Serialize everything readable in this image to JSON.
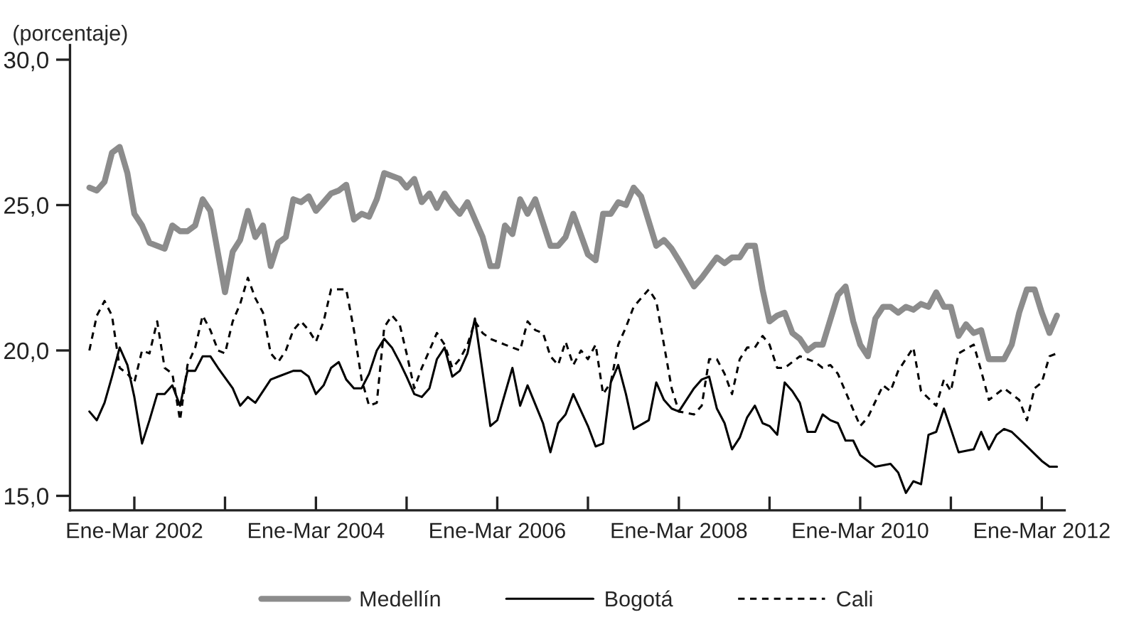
{
  "chart_data": {
    "type": "line",
    "ylabel": "(porcentaje)",
    "ylim": [
      14.5,
      30.5
    ],
    "yticks": [
      {
        "value": 15,
        "label": "15,0"
      },
      {
        "value": 20,
        "label": "20,0"
      },
      {
        "value": 25,
        "label": "25,0"
      },
      {
        "value": 30,
        "label": "30,0"
      }
    ],
    "xlim": [
      "2001-06-15",
      "2012-06"
    ],
    "xticks": [
      {
        "value": "2002-03",
        "label": "Ene-Mar 2002"
      },
      {
        "value": "2003-03",
        "label": null
      },
      {
        "value": "2004-03",
        "label": "Ene-Mar 2004"
      },
      {
        "value": "2005-03",
        "label": null
      },
      {
        "value": "2006-03",
        "label": "Ene-Mar 2006"
      },
      {
        "value": "2007-03",
        "label": null
      },
      {
        "value": "2008-03",
        "label": "Ene-Mar 2008"
      },
      {
        "value": "2009-03",
        "label": null
      },
      {
        "value": "2010-03",
        "label": "Ene-Mar 2010"
      },
      {
        "value": "2011-03",
        "label": null
      },
      {
        "value": "2012-03",
        "label": "Ene-Mar 2012"
      }
    ],
    "grid": false,
    "legend": "bottom",
    "series": [
      {
        "name": "Medellín",
        "color": "#8c8c8c",
        "line_style": "solid",
        "x": [
          "2001-09",
          "2001-10",
          "2001-11",
          "2001-12",
          "2002-01",
          "2002-02",
          "2002-03",
          "2002-04",
          "2002-05",
          "2002-07",
          "2002-08",
          "2002-09",
          "2002-10",
          "2002-11",
          "2002-12",
          "2003-01",
          "2003-03",
          "2003-04",
          "2003-05",
          "2003-06",
          "2003-07",
          "2003-08",
          "2003-09",
          "2003-10",
          "2003-11",
          "2003-12",
          "2004-01",
          "2004-02",
          "2004-03",
          "2004-04",
          "2004-05",
          "2004-06",
          "2004-07",
          "2004-08",
          "2004-09",
          "2004-10",
          "2004-11",
          "2004-12",
          "2005-02",
          "2005-03",
          "2005-04",
          "2005-05",
          "2005-06",
          "2005-07",
          "2005-08",
          "2005-09",
          "2005-10",
          "2005-11",
          "2006-01",
          "2006-02",
          "2006-03",
          "2006-04",
          "2006-05",
          "2006-06",
          "2006-07",
          "2006-08",
          "2006-10",
          "2006-11",
          "2006-12",
          "2007-01",
          "2007-03",
          "2007-04",
          "2007-05",
          "2007-06",
          "2007-07",
          "2007-08",
          "2007-09",
          "2007-10",
          "2007-12",
          "2008-01",
          "2008-02",
          "2008-03",
          "2008-05",
          "2008-06",
          "2008-08",
          "2008-09",
          "2008-10",
          "2008-11",
          "2008-12",
          "2009-01",
          "2009-02",
          "2009-03",
          "2009-04",
          "2009-05",
          "2009-06",
          "2009-07",
          "2009-08",
          "2009-09",
          "2009-10",
          "2009-12",
          "2010-01",
          "2010-02",
          "2010-03",
          "2010-04",
          "2010-05",
          "2010-06",
          "2010-07",
          "2010-08",
          "2010-09",
          "2010-10",
          "2010-11",
          "2010-12",
          "2011-01",
          "2011-02",
          "2011-03",
          "2011-04",
          "2011-05",
          "2011-06",
          "2011-07",
          "2011-08",
          "2011-10",
          "2011-11",
          "2011-12",
          "2012-01",
          "2012-02",
          "2012-03",
          "2012-04",
          "2012-05"
        ],
        "values": [
          25.6,
          25.5,
          25.8,
          26.8,
          27.0,
          26.1,
          24.7,
          24.3,
          23.7,
          23.5,
          24.3,
          24.1,
          24.1,
          24.3,
          25.2,
          24.8,
          22.0,
          23.4,
          23.8,
          24.8,
          23.9,
          24.3,
          22.9,
          23.7,
          23.9,
          25.2,
          25.1,
          25.3,
          24.8,
          25.1,
          25.4,
          25.5,
          25.7,
          24.5,
          24.7,
          24.6,
          25.2,
          26.1,
          25.9,
          25.6,
          25.9,
          25.1,
          25.4,
          24.9,
          25.4,
          25.0,
          24.7,
          25.1,
          23.9,
          22.9,
          22.9,
          24.3,
          24.0,
          25.2,
          24.7,
          25.2,
          23.6,
          23.6,
          23.9,
          24.7,
          23.3,
          23.1,
          24.7,
          24.7,
          25.1,
          25.0,
          25.6,
          25.3,
          23.6,
          23.8,
          23.5,
          23.1,
          22.2,
          22.5,
          23.2,
          23.0,
          23.2,
          23.2,
          23.6,
          23.6,
          22.1,
          21.0,
          21.2,
          21.3,
          20.6,
          20.4,
          20.0,
          20.2,
          20.2,
          21.9,
          22.2,
          21.0,
          20.2,
          19.8,
          21.1,
          21.5,
          21.5,
          21.3,
          21.5,
          21.4,
          21.6,
          21.5,
          22.0,
          21.5,
          21.5,
          20.5,
          20.9,
          20.6,
          20.7,
          19.7,
          19.7,
          20.2,
          21.3,
          22.1,
          22.1,
          21.3,
          20.6,
          21.2
        ]
      },
      {
        "name": "Bogotá",
        "color": "#000000",
        "line_style": "solid",
        "x": [
          "2001-09",
          "2001-10",
          "2001-11",
          "2001-12",
          "2002-01",
          "2002-02",
          "2002-03",
          "2002-04",
          "2002-05",
          "2002-06",
          "2002-07",
          "2002-08",
          "2002-09",
          "2002-10",
          "2002-11",
          "2002-12",
          "2003-01",
          "2003-02",
          "2003-04",
          "2003-05",
          "2003-06",
          "2003-07",
          "2003-09",
          "2003-10",
          "2003-12",
          "2004-01",
          "2004-02",
          "2004-03",
          "2004-04",
          "2004-05",
          "2004-06",
          "2004-07",
          "2004-08",
          "2004-09",
          "2004-10",
          "2004-11",
          "2004-12",
          "2005-01",
          "2005-02",
          "2005-03",
          "2005-04",
          "2005-05",
          "2005-06",
          "2005-07",
          "2005-08",
          "2005-09",
          "2005-10",
          "2005-11",
          "2005-12",
          "2006-02",
          "2006-03",
          "2006-05",
          "2006-06",
          "2006-07",
          "2006-09",
          "2006-10",
          "2006-11",
          "2006-12",
          "2007-01",
          "2007-03",
          "2007-04",
          "2007-05",
          "2007-06",
          "2007-07",
          "2007-08",
          "2007-09",
          "2007-11",
          "2007-12",
          "2008-01",
          "2008-02",
          "2008-03",
          "2008-05",
          "2008-06",
          "2008-07",
          "2008-08",
          "2008-09",
          "2008-10",
          "2008-11",
          "2008-12",
          "2009-01",
          "2009-02",
          "2009-03",
          "2009-04",
          "2009-05",
          "2009-06",
          "2009-07",
          "2009-08",
          "2009-09",
          "2009-10",
          "2009-11",
          "2009-12",
          "2010-01",
          "2010-02",
          "2010-03",
          "2010-04",
          "2010-05",
          "2010-07",
          "2010-08",
          "2010-09",
          "2010-10",
          "2010-11",
          "2010-12",
          "2011-01",
          "2011-02",
          "2011-03",
          "2011-04",
          "2011-06",
          "2011-07",
          "2011-08",
          "2011-09",
          "2011-10",
          "2011-11",
          "2012-01",
          "2012-03",
          "2012-04",
          "2012-05"
        ],
        "values": [
          17.9,
          17.6,
          18.2,
          19.1,
          20.1,
          19.5,
          18.4,
          16.8,
          17.6,
          18.5,
          18.5,
          18.8,
          18.1,
          19.3,
          19.3,
          19.8,
          19.8,
          19.4,
          18.7,
          18.1,
          18.4,
          18.2,
          19.0,
          19.1,
          19.3,
          19.3,
          19.1,
          18.5,
          18.8,
          19.4,
          19.6,
          19.0,
          18.7,
          18.7,
          19.2,
          20.0,
          20.4,
          20.1,
          19.6,
          19.1,
          18.5,
          18.4,
          18.7,
          19.7,
          20.1,
          19.1,
          19.3,
          19.9,
          21.1,
          17.4,
          17.6,
          19.4,
          18.1,
          18.8,
          17.5,
          16.5,
          17.5,
          17.8,
          18.5,
          17.4,
          16.7,
          16.8,
          18.9,
          19.5,
          18.5,
          17.3,
          17.6,
          18.9,
          18.3,
          18.0,
          17.9,
          18.7,
          19.0,
          19.1,
          18.0,
          17.5,
          16.6,
          17.0,
          17.7,
          18.1,
          17.5,
          17.4,
          17.1,
          18.9,
          18.6,
          18.2,
          17.2,
          17.2,
          17.8,
          17.6,
          17.5,
          16.9,
          16.9,
          16.4,
          16.2,
          16.0,
          16.1,
          15.8,
          15.1,
          15.5,
          15.4,
          17.1,
          17.2,
          18.0,
          17.3,
          16.5,
          16.6,
          17.2,
          16.6,
          17.1,
          17.3,
          17.2,
          16.7,
          16.2,
          16.0,
          16.0
        ]
      },
      {
        "name": "Cali",
        "color": "#000000",
        "line_style": "dashed",
        "x": [
          "2001-09",
          "2001-10",
          "2001-11",
          "2001-12",
          "2002-01",
          "2002-02",
          "2002-03",
          "2002-04",
          "2002-05",
          "2002-06",
          "2002-07",
          "2002-08",
          "2002-09",
          "2002-10",
          "2002-11",
          "2002-12",
          "2003-01",
          "2003-02",
          "2003-03",
          "2003-04",
          "2003-05",
          "2003-06",
          "2003-07",
          "2003-08",
          "2003-09",
          "2003-10",
          "2003-11",
          "2003-12",
          "2004-01",
          "2004-02",
          "2004-03",
          "2004-04",
          "2004-05",
          "2004-06",
          "2004-07",
          "2004-08",
          "2004-09",
          "2004-10",
          "2004-11",
          "2004-12",
          "2005-01",
          "2005-02",
          "2005-03",
          "2005-04",
          "2005-05",
          "2005-06",
          "2005-07",
          "2005-08",
          "2005-09",
          "2005-10",
          "2005-11",
          "2005-12",
          "2006-01",
          "2006-02",
          "2006-04",
          "2006-06",
          "2006-07",
          "2006-08",
          "2006-09",
          "2006-10",
          "2006-11",
          "2006-12",
          "2007-01",
          "2007-02",
          "2007-03",
          "2007-04",
          "2007-05",
          "2007-06",
          "2007-07",
          "2007-08",
          "2007-09",
          "2007-11",
          "2007-12",
          "2008-01",
          "2008-02",
          "2008-03",
          "2008-05",
          "2008-06",
          "2008-07",
          "2008-08",
          "2008-09",
          "2008-10",
          "2008-11",
          "2008-12",
          "2009-01",
          "2009-02",
          "2009-03",
          "2009-04",
          "2009-05",
          "2009-07",
          "2009-09",
          "2009-10",
          "2009-11",
          "2009-12",
          "2010-03",
          "2010-04",
          "2010-06",
          "2010-07",
          "2010-08",
          "2010-10",
          "2010-11",
          "2011-01",
          "2011-02",
          "2011-03",
          "2011-04",
          "2011-06",
          "2011-07",
          "2011-08",
          "2011-09",
          "2011-10",
          "2011-12",
          "2012-01",
          "2012-02",
          "2012-03",
          "2012-04",
          "2012-05"
        ],
        "values": [
          20.0,
          21.2,
          21.7,
          21.2,
          19.4,
          19.2,
          18.9,
          20.0,
          19.9,
          21.0,
          19.4,
          19.2,
          17.6,
          19.5,
          20.1,
          21.2,
          20.7,
          20.0,
          19.9,
          21.0,
          21.6,
          22.5,
          21.8,
          21.3,
          19.9,
          19.6,
          20.0,
          20.7,
          21.0,
          20.7,
          20.3,
          21.0,
          22.1,
          22.1,
          22.1,
          20.7,
          19.0,
          18.1,
          18.2,
          20.8,
          21.2,
          20.9,
          19.9,
          18.7,
          19.4,
          20.0,
          20.6,
          20.2,
          19.4,
          19.7,
          20.2,
          21.0,
          20.6,
          20.4,
          20.2,
          20.0,
          21.0,
          20.7,
          20.6,
          19.8,
          19.5,
          20.3,
          19.5,
          20.0,
          19.7,
          20.2,
          18.5,
          18.9,
          20.2,
          20.8,
          21.5,
          22.1,
          21.7,
          20.2,
          18.7,
          17.9,
          17.8,
          18.1,
          19.7,
          19.7,
          19.2,
          18.5,
          19.7,
          20.1,
          20.1,
          20.5,
          20.2,
          19.4,
          19.4,
          19.8,
          19.6,
          19.4,
          19.5,
          19.2,
          17.4,
          17.7,
          18.8,
          18.6,
          19.3,
          20.1,
          18.6,
          18.1,
          19.0,
          18.6,
          19.9,
          20.2,
          19.3,
          18.3,
          18.5,
          18.7,
          18.3,
          17.6,
          18.7,
          18.9,
          19.8,
          19.9
        ]
      }
    ]
  }
}
